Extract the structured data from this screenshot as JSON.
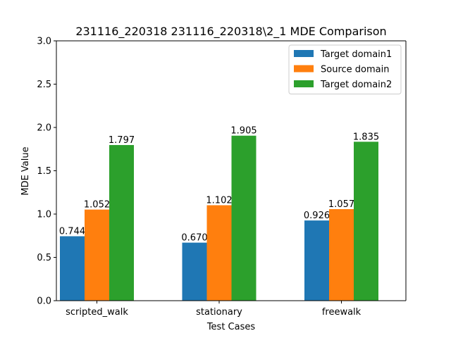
{
  "chart_data": {
    "type": "bar",
    "title": "231116_220318 231116_220318\\2_1 MDE Comparison",
    "xlabel": "Test Cases",
    "ylabel": "MDE Value",
    "ylim": [
      0,
      3.0
    ],
    "yticks": [
      "0.0",
      "0.5",
      "1.0",
      "1.5",
      "2.0",
      "2.5",
      "3.0"
    ],
    "ytick_values": [
      0,
      0.5,
      1.0,
      1.5,
      2.0,
      2.5,
      3.0
    ],
    "categories": [
      "scripted_walk",
      "stationary",
      "freewalk"
    ],
    "series": [
      {
        "name": "Target domain1",
        "color": "#1f77b4",
        "values": [
          0.744,
          0.67,
          0.926
        ],
        "labels": [
          "0.744",
          "0.670",
          "0.926"
        ]
      },
      {
        "name": "Source domain",
        "color": "#ff7f0e",
        "values": [
          1.052,
          1.102,
          1.057
        ],
        "labels": [
          "1.052",
          "1.102",
          "1.057"
        ]
      },
      {
        "name": "Target domain2",
        "color": "#2ca02c",
        "values": [
          1.797,
          1.905,
          1.835
        ],
        "labels": [
          "1.797",
          "1.905",
          "1.835"
        ]
      }
    ],
    "grid": false,
    "legend_position": "top-right"
  }
}
